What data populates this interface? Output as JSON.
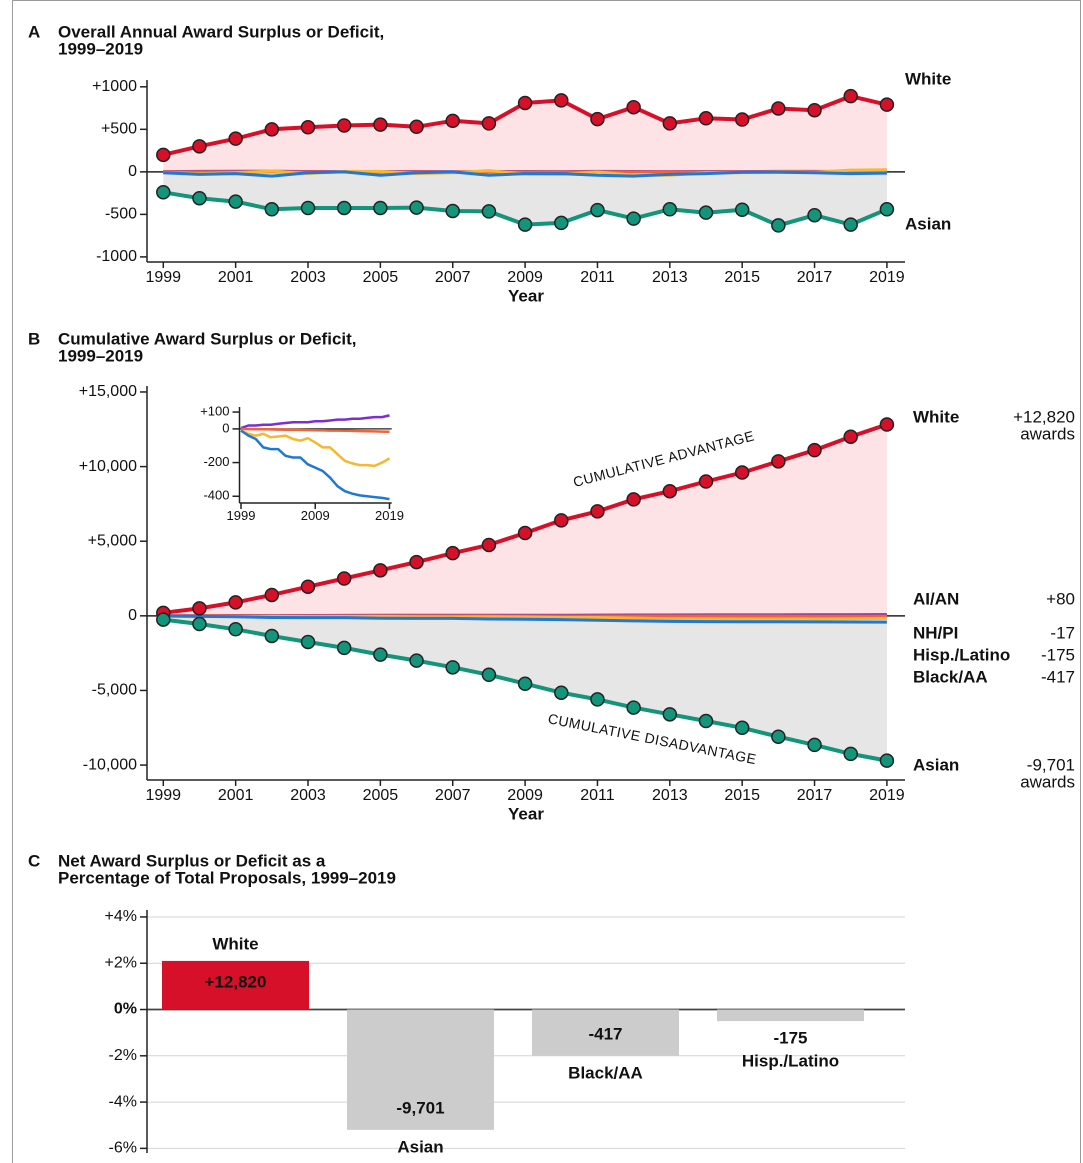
{
  "chart_data": [
    {
      "panel": "A",
      "type": "line",
      "title": [
        "Overall Annual Award Surplus or Deficit,",
        "1999–2019"
      ],
      "x": [
        1999,
        2000,
        2001,
        2002,
        2003,
        2004,
        2005,
        2006,
        2007,
        2008,
        2009,
        2010,
        2011,
        2012,
        2013,
        2014,
        2015,
        2016,
        2017,
        2018,
        2019
      ],
      "xlim": [
        1998.55,
        2019.5
      ],
      "xticks": [
        1999,
        2001,
        2003,
        2005,
        2007,
        2009,
        2011,
        2013,
        2015,
        2017,
        2019
      ],
      "xlabel": "Year",
      "ylim": [
        -1060,
        1080
      ],
      "yticks": [
        {
          "value": 1000,
          "label": "+1000"
        },
        {
          "value": 500,
          "label": "+500"
        },
        0,
        -500,
        -1000
      ],
      "series": [
        {
          "name": "White",
          "color": "#d7102a",
          "fill": "#fde3e5",
          "markers": true,
          "values": [
            200,
            300,
            390,
            500,
            525,
            545,
            555,
            530,
            600,
            570,
            810,
            840,
            620,
            760,
            570,
            630,
            615,
            745,
            725,
            890,
            790
          ]
        },
        {
          "name": "Asian",
          "color": "#12957a",
          "fill": "#e6e6e6",
          "markers": true,
          "values": [
            -240,
            -310,
            -350,
            -440,
            -425,
            -425,
            -425,
            -420,
            -460,
            -465,
            -620,
            -600,
            -450,
            -550,
            -440,
            -480,
            -445,
            -630,
            -510,
            -620,
            -440
          ]
        },
        {
          "color": "#7b2fd0",
          "values": [
            3,
            5,
            8,
            6,
            4,
            3,
            3,
            4,
            2,
            3,
            4,
            3,
            5,
            4,
            3,
            4,
            3,
            5,
            5,
            4,
            8
          ]
        },
        {
          "color": "#f0643c",
          "values": [
            -1,
            -1,
            -1,
            0,
            -1,
            -1,
            -1,
            0,
            -1,
            -1,
            -1,
            -1,
            0,
            -1,
            -1,
            -1,
            -1,
            -1,
            -1,
            -1,
            0
          ]
        },
        {
          "color": "#f5b830",
          "values": [
            -10,
            -20,
            -10,
            10,
            -20,
            5,
            5,
            -20,
            -10,
            15,
            -25,
            -30,
            0,
            -40,
            -40,
            -10,
            -10,
            0,
            -5,
            20,
            25
          ]
        },
        {
          "color": "#1f78d1",
          "values": [
            -10,
            -30,
            -20,
            -50,
            -10,
            0,
            -40,
            -10,
            0,
            -40,
            -20,
            -20,
            -40,
            -50,
            -30,
            -20,
            -5,
            -5,
            -10,
            -20,
            -15
          ]
        }
      ]
    },
    {
      "panel": "B",
      "type": "line",
      "title": [
        "Cumulative Award Surplus or Deficit,",
        "1999–2019"
      ],
      "x": [
        1999,
        2000,
        2001,
        2002,
        2003,
        2004,
        2005,
        2006,
        2007,
        2008,
        2009,
        2010,
        2011,
        2012,
        2013,
        2014,
        2015,
        2016,
        2017,
        2018,
        2019
      ],
      "xlim": [
        1998.55,
        2019.5
      ],
      "xticks": [
        1999,
        2001,
        2003,
        2005,
        2007,
        2009,
        2011,
        2013,
        2015,
        2017,
        2019
      ],
      "xlabel": "Year",
      "ylim": [
        -11000,
        15400
      ],
      "yticks": [
        {
          "value": 15000,
          "label": "+15,000"
        },
        {
          "value": 10000,
          "label": "+10,000"
        },
        {
          "value": 5000,
          "label": "+5,000"
        },
        0,
        {
          "value": -5000,
          "label": "-5,000"
        },
        {
          "value": -10000,
          "label": "-10,000"
        }
      ],
      "annotations": [
        "CUMULATIVE ADVANTAGE",
        "CUMULATIVE DISADVANTAGE"
      ],
      "series": [
        {
          "name": "White",
          "color": "#d7102a",
          "fill": "#fde3e5",
          "markers": true,
          "end_label": "+12,820",
          "end_unit": "awards",
          "values": [
            200,
            500,
            900,
            1400,
            1950,
            2500,
            3050,
            3600,
            4200,
            4750,
            5550,
            6400,
            7000,
            7800,
            8350,
            9000,
            9600,
            10350,
            11100,
            12000,
            12820
          ]
        },
        {
          "name": "AI/AN",
          "color": "#7b2fd0",
          "end_label": "+80",
          "in_inset": true,
          "values": [
            5,
            20,
            20,
            25,
            25,
            30,
            35,
            40,
            40,
            40,
            45,
            45,
            50,
            55,
            55,
            60,
            60,
            65,
            70,
            70,
            80
          ]
        },
        {
          "name": "NH/PI",
          "color": "#f0643c",
          "end_label": "-17",
          "in_inset": true,
          "values": [
            0,
            -1,
            -2,
            -2,
            -3,
            -4,
            -5,
            -5,
            -6,
            -7,
            -8,
            -9,
            -10,
            -10,
            -11,
            -12,
            -13,
            -14,
            -15,
            -16,
            -17
          ]
        },
        {
          "name": "Hisp./Latino",
          "color": "#f5b830",
          "label_color": "#c8961e",
          "end_label": "-175",
          "in_inset": true,
          "values": [
            -10,
            -30,
            -40,
            -30,
            -50,
            -45,
            -40,
            -60,
            -70,
            -55,
            -80,
            -110,
            -110,
            -150,
            -190,
            -205,
            -215,
            -215,
            -220,
            -200,
            -175
          ]
        },
        {
          "name": "Black/AA",
          "color": "#1f78d1",
          "end_label": "-417",
          "in_inset": true,
          "values": [
            -10,
            -40,
            -60,
            -110,
            -120,
            -120,
            -160,
            -170,
            -170,
            -210,
            -230,
            -250,
            -290,
            -340,
            -370,
            -385,
            -395,
            -400,
            -405,
            -410,
            -417
          ]
        },
        {
          "name": "Asian",
          "color": "#12957a",
          "fill": "#e6e6e6",
          "markers": true,
          "end_label": "-9,701",
          "end_unit": "awards",
          "values": [
            -250,
            -550,
            -900,
            -1350,
            -1750,
            -2150,
            -2600,
            -3000,
            -3450,
            -3950,
            -4550,
            -5150,
            -5600,
            -6150,
            -6600,
            -7050,
            -7500,
            -8100,
            -8650,
            -9250,
            -9701
          ]
        }
      ],
      "inset": {
        "xlim": [
          1998.8,
          2019.3
        ],
        "xticks": [
          1999,
          2009,
          2019
        ],
        "ylim": [
          -440,
          130
        ],
        "yticks": [
          {
            "value": 100,
            "label": "+100"
          },
          0,
          -200,
          -400
        ]
      }
    },
    {
      "panel": "C",
      "type": "bar",
      "title": [
        "Net Award Surplus or Deficit as a",
        "Percentage of Total Proposals, 1999–2019"
      ],
      "categories": [
        "White",
        "Asian",
        "Black/AA",
        "Hisp./Latino"
      ],
      "values": [
        2.1,
        -5.2,
        -2.0,
        -0.5
      ],
      "bar_colors": [
        "#d7102a",
        "#cccccc",
        "#cccccc",
        "#cccccc"
      ],
      "category_colors": [
        "#d7102a",
        "#12957a",
        "#1f78d1",
        "#c8961e"
      ],
      "bar_labels": [
        "+12,820",
        "-9,701",
        "-417",
        "-175"
      ],
      "bar_label_colors": [
        "#ffffff",
        "#111111",
        "#111111",
        "#111111"
      ],
      "ylim": [
        -6.2,
        4.3
      ],
      "yticks": [
        {
          "value": 4,
          "label": "+4%"
        },
        {
          "value": 2,
          "label": "+2%"
        },
        {
          "value": 0,
          "label": "0%"
        },
        {
          "value": -2,
          "label": "-2%"
        },
        {
          "value": -4,
          "label": "-4%"
        },
        {
          "value": -6,
          "label": "-6%"
        }
      ],
      "grid": true
    }
  ]
}
